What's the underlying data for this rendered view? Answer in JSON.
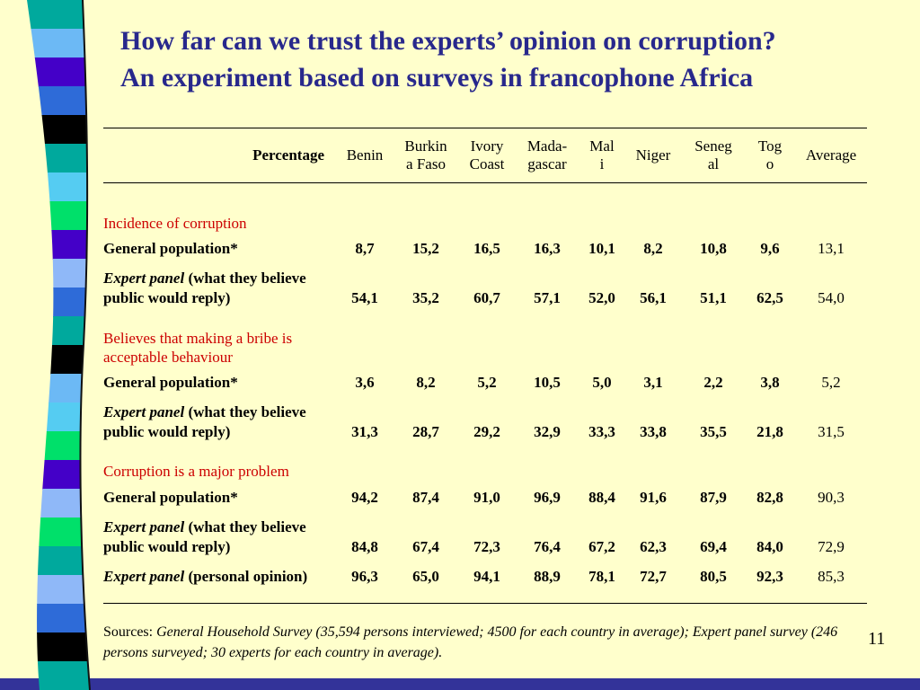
{
  "slide": {
    "title_line1": "How far can we trust the experts’ opinion on corruption?",
    "title_line2": "An experiment based on surveys in francophone Africa",
    "page_number": "11"
  },
  "table": {
    "columns": [
      [
        "Percentage"
      ],
      [
        "Benin"
      ],
      [
        "Burkin",
        "a Faso"
      ],
      [
        "Ivory",
        "Coast"
      ],
      [
        "Mada-",
        "gascar"
      ],
      [
        "Mal",
        "i"
      ],
      [
        "Niger"
      ],
      [
        "Seneg",
        "al"
      ],
      [
        "Tog",
        "o"
      ],
      [
        "Average"
      ]
    ],
    "sections": [
      {
        "heading": "Incidence of corruption",
        "rows": [
          {
            "label_italic": "",
            "label_rest": "General population*",
            "values": [
              "8,7",
              "15,2",
              "16,5",
              "16,3",
              "10,1",
              "8,2",
              "10,8",
              "9,6",
              "13,1"
            ]
          },
          {
            "label_italic": "Expert panel",
            "label_rest": " (what they believe public would reply)",
            "values": [
              "54,1",
              "35,2",
              "60,7",
              "57,1",
              "52,0",
              "56,1",
              "51,1",
              "62,5",
              "54,0"
            ]
          }
        ]
      },
      {
        "heading": "Believes that making a bribe is acceptable behaviour",
        "rows": [
          {
            "label_italic": "",
            "label_rest": "General population*",
            "values": [
              "3,6",
              "8,2",
              "5,2",
              "10,5",
              "5,0",
              "3,1",
              "2,2",
              "3,8",
              "5,2"
            ]
          },
          {
            "label_italic": "Expert panel",
            "label_rest": " (what they believe public would reply)",
            "values": [
              "31,3",
              "28,7",
              "29,2",
              "32,9",
              "33,3",
              "33,8",
              "35,5",
              "21,8",
              "31,5"
            ]
          }
        ]
      },
      {
        "heading": "Corruption is a major problem",
        "rows": [
          {
            "label_italic": "",
            "label_rest": "General population*",
            "values": [
              "94,2",
              "87,4",
              "91,0",
              "96,9",
              "88,4",
              "91,6",
              "87,9",
              "82,8",
              "90,3"
            ]
          },
          {
            "label_italic": "Expert panel",
            "label_rest": " (what they believe public would reply)",
            "values": [
              "84,8",
              "67,4",
              "72,3",
              "76,4",
              "67,2",
              "62,3",
              "69,4",
              "84,0",
              "72,9"
            ]
          },
          {
            "label_italic": "Expert panel",
            "label_rest": " (personal opinion)",
            "values": [
              "96,3",
              "65,0",
              "94,1",
              "88,9",
              "78,1",
              "72,7",
              "80,5",
              "92,3",
              "85,3"
            ]
          }
        ]
      }
    ]
  },
  "footer": {
    "sources_label": "Sources:",
    "sources_text": " General Household Survey (35,594 persons interviewed; 4500 for each country in average); Expert panel survey (246 persons surveyed; 30 experts for each country in average)."
  },
  "decor": {
    "background_color": "#FFFFCC",
    "title_color": "#28288C",
    "section_heading_color": "#CC0000",
    "bottom_bar_color": "#333399",
    "ribbon_colors": [
      "#00A99D",
      "#6CB9F5",
      "#4400C8",
      "#2E6BD8",
      "#000000",
      "#00A99D",
      "#55CCF2",
      "#00E06A",
      "#4400C8",
      "#8FB8F8",
      "#2E6BD8",
      "#00A99D",
      "#000000",
      "#6CB9F5",
      "#55CCF2",
      "#00E06A",
      "#4400C8",
      "#8FB8F8",
      "#00E06A",
      "#00A99D",
      "#8FB8F8",
      "#2E6BD8",
      "#000000",
      "#00A99D"
    ]
  }
}
